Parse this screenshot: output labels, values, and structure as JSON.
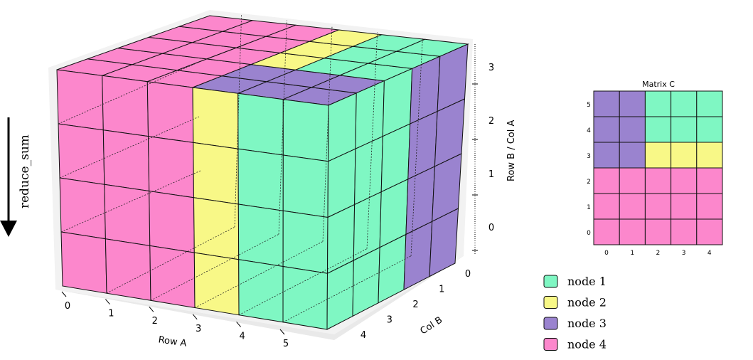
{
  "arrow_label": "reduce_sum",
  "cube": {
    "row_a_label": "Row A",
    "col_b_label": "Col B",
    "row_b_col_a_label": "Row B / Col A",
    "row_a_ticks": [
      "0",
      "1",
      "2",
      "3",
      "4",
      "5"
    ],
    "col_b_ticks": [
      "0",
      "1",
      "2",
      "3",
      "4"
    ],
    "z_ticks": [
      "0",
      "1",
      "2",
      "3"
    ],
    "front_face_columns": [
      "node 4",
      "node 4",
      "node 4",
      "node 2",
      "node 1",
      "node 1"
    ],
    "right_face_columns_front_to_back": [
      "node 1",
      "node 1",
      "node 1",
      "node 3",
      "node 3"
    ]
  },
  "matrix_c": {
    "title": "Matrix C",
    "x_ticks": [
      "0",
      "1",
      "2",
      "3",
      "4"
    ],
    "y_ticks": [
      "0",
      "1",
      "2",
      "3",
      "4",
      "5"
    ],
    "rows_top_to_bottom": [
      [
        "node 3",
        "node 3",
        "node 1",
        "node 1",
        "node 1"
      ],
      [
        "node 3",
        "node 3",
        "node 1",
        "node 1",
        "node 1"
      ],
      [
        "node 3",
        "node 3",
        "node 2",
        "node 2",
        "node 2"
      ],
      [
        "node 4",
        "node 4",
        "node 4",
        "node 4",
        "node 4"
      ],
      [
        "node 4",
        "node 4",
        "node 4",
        "node 4",
        "node 4"
      ],
      [
        "node 4",
        "node 4",
        "node 4",
        "node 4",
        "node 4"
      ]
    ]
  },
  "legend": [
    {
      "label": "node 1",
      "color": "#7ff7c3"
    },
    {
      "label": "node 2",
      "color": "#f8f887"
    },
    {
      "label": "node 3",
      "color": "#9a83cf"
    },
    {
      "label": "node 4",
      "color": "#fc87cc"
    }
  ],
  "colors": {
    "node 1": "#7ff7c3",
    "node 2": "#f8f887",
    "node 3": "#9a83cf",
    "node 4": "#fc87cc"
  }
}
